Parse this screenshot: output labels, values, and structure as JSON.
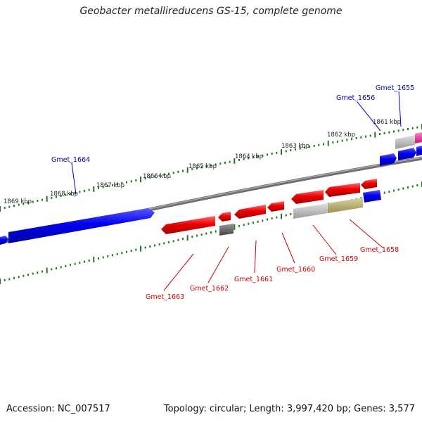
{
  "title": "Geobacter metallireducens GS-15, complete genome",
  "footer": {
    "accession": "Accession: NC_007517",
    "summary": "Topology: circular; Length: 3,997,420 bp; Genes: 3,577"
  },
  "ruler_ticks": [
    "1861 kbp",
    "1862 kbp",
    "1863 kbp",
    "1864 kbp",
    "1865 kbp",
    "1866 kbp",
    "1867 kbp",
    "1868 kbp",
    "1869 kbp"
  ],
  "gene_labels_top": [
    "Gmet_1655",
    "Gmet_1656",
    "Gmet_1664"
  ],
  "gene_labels_bottom": [
    "Gmet_1658",
    "Gmet_1659",
    "Gmet_1660",
    "Gmet_1661",
    "Gmet_1662",
    "Gmet_1663"
  ],
  "colors": {
    "forward_strand": "#0000ee",
    "reverse_strand": "#ee0000",
    "backbone": "#808080",
    "ruler": "#1e7a1e",
    "pink_feature": "#ee2a9a",
    "gray_feature": "#b0b0b0",
    "dark_gray_feature": "#666666",
    "olive_feature": "#b8b070",
    "top_label_color": "#0000bb",
    "bottom_label_color": "#cc0000"
  }
}
